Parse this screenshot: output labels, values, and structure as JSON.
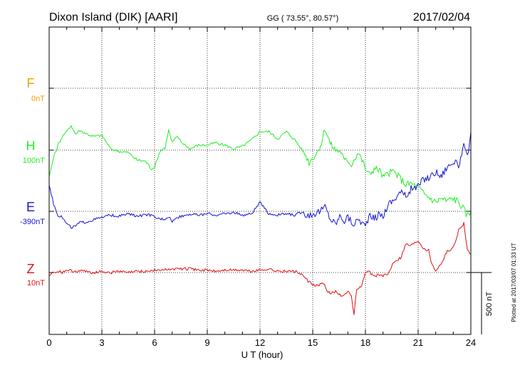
{
  "header": {
    "station": "Dixon Island (DIK)  [AARI]",
    "coords": "GG ( 73.55°,  80.57°)",
    "date": "2017/02/04"
  },
  "footer": {
    "plotted": "Plotted at 2017/03/07 01:33 UT"
  },
  "chart_data": {
    "type": "line",
    "xlabel": "U T (hour)",
    "xlim": [
      0,
      24
    ],
    "xticks": [
      "0",
      "3",
      "6",
      "9",
      "12",
      "15",
      "18",
      "21",
      "24"
    ],
    "scale_bar": "500 nT",
    "grid": true,
    "colors": {
      "F": "#f2a000",
      "H": "#22ee22",
      "E": "#1515d0",
      "Z": "#e01010"
    },
    "channels": [
      {
        "name": "F",
        "baseline": "0nT",
        "color": "#f2a000"
      },
      {
        "name": "H",
        "baseline": "100nT",
        "color": "#22ee22"
      },
      {
        "name": "E",
        "baseline": "-390nT",
        "color": "#1515d0"
      },
      {
        "name": "Z",
        "baseline": "10nT",
        "color": "#e01010"
      }
    ],
    "series": [
      {
        "name": "H",
        "x": [
          0,
          0.25,
          0.5,
          0.75,
          1,
          1.25,
          1.5,
          1.75,
          2,
          2.5,
          3,
          3.5,
          4,
          4.5,
          5,
          5.5,
          5.8,
          6,
          6.3,
          6.6,
          6.8,
          7,
          7.3,
          7.5,
          8,
          8.5,
          9,
          9.5,
          10,
          10.5,
          11,
          11.5,
          12,
          12.5,
          13,
          13.5,
          14,
          14.3,
          14.6,
          14.8,
          15,
          15.2,
          15.5,
          15.7,
          16,
          16.3,
          16.6,
          16.8,
          17,
          17.2,
          17.4,
          17.6,
          17.8,
          18,
          18.2,
          18.5,
          18.8,
          19,
          19.3,
          19.6,
          20,
          20.3,
          20.6,
          21,
          21.3,
          21.6,
          22,
          22.3,
          22.6,
          23,
          23.3,
          23.6,
          23.8,
          24
        ],
        "y": [
          -220,
          -60,
          40,
          110,
          150,
          200,
          130,
          160,
          140,
          110,
          120,
          10,
          -10,
          -20,
          -80,
          -90,
          -150,
          -140,
          -10,
          20,
          160,
          60,
          110,
          70,
          10,
          40,
          40,
          60,
          40,
          10,
          30,
          80,
          150,
          150,
          90,
          150,
          80,
          20,
          -40,
          -100,
          -60,
          -30,
          60,
          180,
          50,
          0,
          -10,
          -90,
          -80,
          -120,
          -60,
          -20,
          -80,
          -150,
          -200,
          -150,
          -160,
          -220,
          -190,
          -170,
          -230,
          -280,
          -270,
          -300,
          -350,
          -380,
          -420,
          -390,
          -410,
          -390,
          -420,
          -480,
          -530,
          -500
        ],
        "ylim": [
          -1000,
          700
        ]
      },
      {
        "name": "E",
        "x": [
          0,
          0.25,
          0.5,
          0.75,
          1,
          1.25,
          1.5,
          1.75,
          2,
          2.5,
          3,
          3.5,
          4,
          4.5,
          5,
          5.5,
          5.8,
          6,
          6.3,
          6.6,
          6.8,
          7,
          7.3,
          7.5,
          8,
          8.5,
          9,
          9.5,
          10,
          10.5,
          11,
          11.5,
          12,
          12.5,
          13,
          13.5,
          14,
          14.3,
          14.6,
          14.8,
          15,
          15.2,
          15.5,
          15.7,
          16,
          16.3,
          16.6,
          16.8,
          17,
          17.2,
          17.4,
          17.6,
          17.8,
          18,
          18.2,
          18.5,
          18.8,
          19,
          19.3,
          19.6,
          20,
          20.3,
          20.6,
          21,
          21.3,
          21.6,
          22,
          22.3,
          22.6,
          23,
          23.3,
          23.6,
          23.8,
          24
        ],
        "y": [
          220,
          60,
          -30,
          -50,
          -100,
          -130,
          -120,
          -90,
          -90,
          -70,
          -50,
          -30,
          -40,
          -20,
          -40,
          -30,
          -30,
          -50,
          -60,
          -60,
          -40,
          -80,
          -50,
          -40,
          -20,
          -30,
          -20,
          -30,
          -20,
          -10,
          -30,
          -20,
          70,
          -20,
          -30,
          -20,
          -30,
          -10,
          -20,
          -30,
          -20,
          -10,
          10,
          40,
          -60,
          -100,
          -30,
          -80,
          -40,
          -90,
          -100,
          -60,
          -90,
          -120,
          -40,
          -60,
          -20,
          -40,
          60,
          90,
          160,
          120,
          180,
          200,
          260,
          270,
          320,
          280,
          350,
          400,
          370,
          520,
          430,
          640
        ],
        "ylim": [
          -1000,
          700
        ]
      },
      {
        "name": "Z",
        "x": [
          0,
          0.25,
          0.5,
          0.75,
          1,
          1.5,
          2,
          2.5,
          3,
          3.5,
          4,
          4.5,
          5,
          5.5,
          6,
          6.5,
          7,
          7.5,
          8,
          8.5,
          9,
          9.5,
          10,
          10.5,
          11,
          11.5,
          12,
          12.5,
          13,
          13.5,
          14,
          14.3,
          14.6,
          14.8,
          15,
          15.3,
          15.6,
          15.8,
          16,
          16.3,
          16.6,
          16.8,
          17,
          17.2,
          17.35,
          17.5,
          17.8,
          18,
          18.2,
          18.5,
          18.8,
          19,
          19.3,
          19.6,
          20,
          20.3,
          20.6,
          21,
          21.3,
          21.6,
          21.8,
          22,
          22.3,
          22.6,
          23,
          23.3,
          23.6,
          23.8,
          24
        ],
        "y": [
          -20,
          0,
          10,
          0,
          20,
          10,
          10,
          0,
          10,
          0,
          10,
          0,
          10,
          10,
          20,
          20,
          30,
          30,
          30,
          20,
          20,
          10,
          20,
          20,
          20,
          10,
          20,
          30,
          10,
          10,
          10,
          -10,
          -50,
          -80,
          -100,
          -110,
          -80,
          -150,
          -170,
          -150,
          -180,
          -190,
          -150,
          -200,
          -330,
          -150,
          -100,
          -10,
          10,
          -30,
          -20,
          -30,
          -10,
          90,
          120,
          230,
          220,
          260,
          200,
          180,
          60,
          20,
          70,
          160,
          200,
          340,
          400,
          180,
          150
        ],
        "ylim": [
          -1000,
          700
        ]
      }
    ]
  }
}
